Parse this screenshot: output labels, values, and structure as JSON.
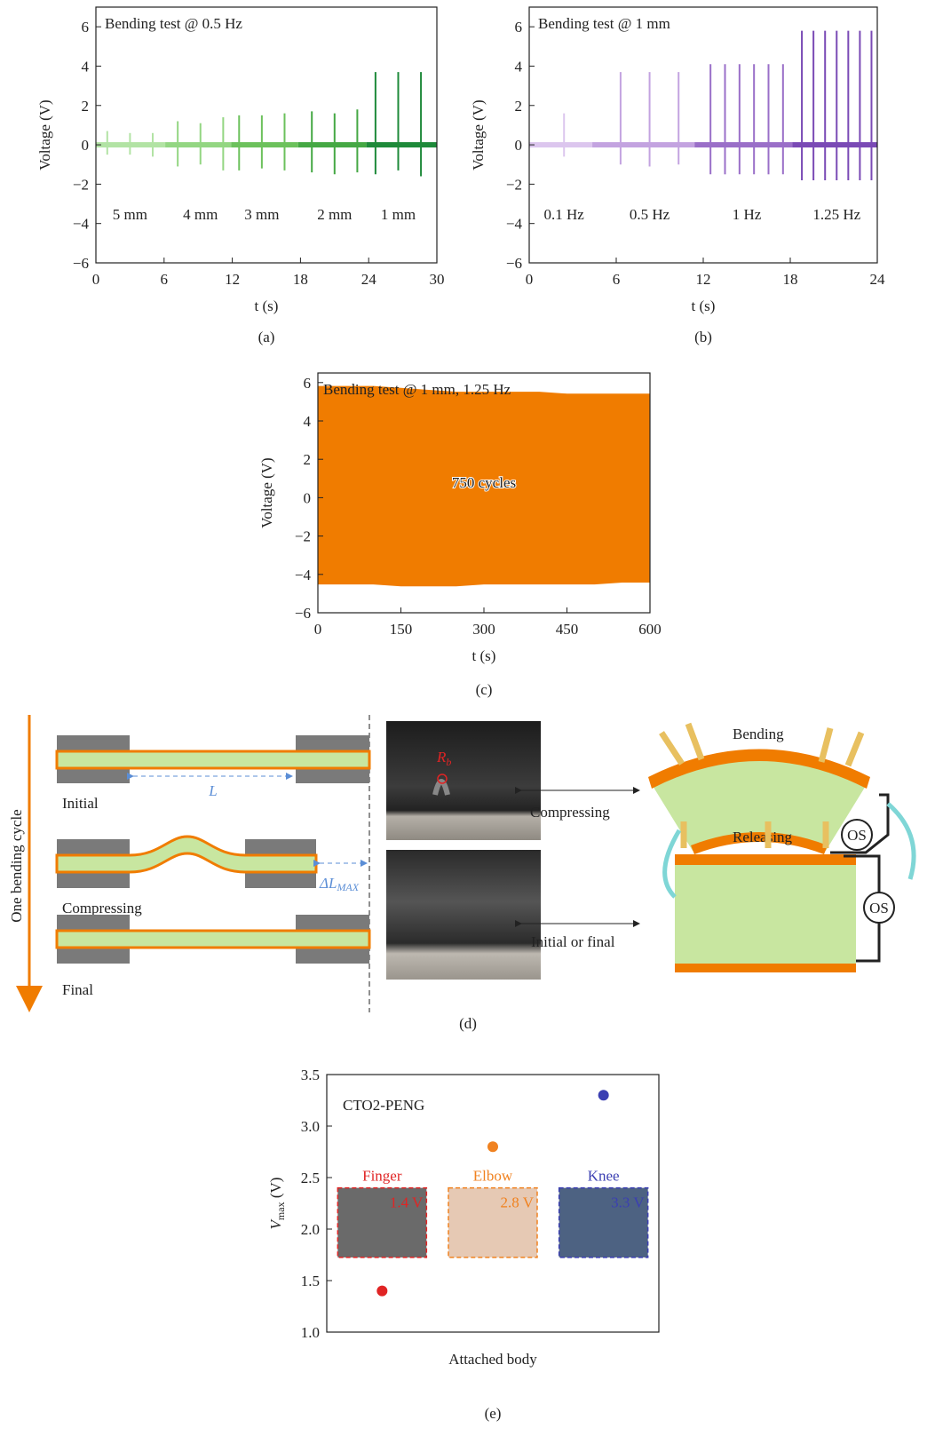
{
  "chart_data": [
    {
      "type": "spike",
      "title": "Bending test @ 0.5 Hz",
      "xlabel": "t (s)",
      "ylabel": "Voltage (V)",
      "caption": "(a)",
      "xlim": [
        0,
        30
      ],
      "xticks": [
        0,
        6,
        12,
        18,
        24,
        30
      ],
      "ylim": [
        -6,
        7
      ],
      "yticks": [
        {
          "value": -6,
          "label": "−6"
        },
        {
          "value": -4,
          "label": "−4"
        },
        {
          "value": -2,
          "label": "−2"
        },
        0,
        2,
        4,
        6
      ],
      "series": [
        {
          "name": "5 mm",
          "color": "#b2e3a4",
          "x": [
            1.0,
            3.0,
            5.0
          ],
          "values": [
            0.7,
            0.6,
            0.6
          ],
          "min_values": [
            -0.5,
            -0.5,
            -0.6
          ]
        },
        {
          "name": "4 mm",
          "color": "#93d682",
          "x": [
            7.2,
            9.2,
            11.2
          ],
          "values": [
            1.2,
            1.1,
            1.4
          ],
          "min_values": [
            -1.1,
            -1.0,
            -1.3
          ]
        },
        {
          "name": "3 mm",
          "color": "#6cc15c",
          "x": [
            12.6,
            14.6,
            16.6
          ],
          "values": [
            1.5,
            1.5,
            1.6
          ],
          "min_values": [
            -1.3,
            -1.2,
            -1.3
          ]
        },
        {
          "name": "2 mm",
          "color": "#45a844",
          "x": [
            19.0,
            21.0,
            23.0
          ],
          "values": [
            1.7,
            1.6,
            1.8
          ],
          "min_values": [
            -1.4,
            -1.5,
            -1.4
          ]
        },
        {
          "name": "1 mm",
          "color": "#1e8a3a",
          "x": [
            24.6,
            26.6,
            28.6
          ],
          "values": [
            3.7,
            3.7,
            3.7
          ],
          "min_values": [
            -1.5,
            -1.3,
            -1.6
          ]
        }
      ]
    },
    {
      "type": "spike",
      "title": "Bending test @ 1 mm",
      "xlabel": "t (s)",
      "ylabel": "Voltage (V)",
      "caption": "(b)",
      "xlim": [
        0,
        24
      ],
      "xticks": [
        0,
        6,
        12,
        18,
        24
      ],
      "ylim": [
        -6,
        7
      ],
      "yticks": [
        {
          "value": -6,
          "label": "−6"
        },
        {
          "value": -4,
          "label": "−4"
        },
        {
          "value": -2,
          "label": "−2"
        },
        0,
        2,
        4,
        6
      ],
      "series": [
        {
          "name": "0.1 Hz",
          "color": "#dcc6ee",
          "x": [
            2.4
          ],
          "values": [
            1.6
          ],
          "min_values": [
            -0.6
          ]
        },
        {
          "name": "0.5 Hz",
          "color": "#c3a3e0",
          "x": [
            6.3,
            8.3,
            10.3
          ],
          "values": [
            3.7,
            3.7,
            3.7
          ],
          "min_values": [
            -1.0,
            -1.1,
            -1.0
          ]
        },
        {
          "name": "1 Hz",
          "color": "#9a6fc8",
          "x": [
            12.5,
            13.5,
            14.5,
            15.5,
            16.5,
            17.5
          ],
          "values": [
            4.1,
            4.1,
            4.1,
            4.1,
            4.1,
            4.1
          ],
          "min_values": [
            -1.5,
            -1.5,
            -1.5,
            -1.5,
            -1.5,
            -1.5
          ]
        },
        {
          "name": "1.25 Hz",
          "color": "#7a4ab5",
          "x": [
            18.8,
            19.6,
            20.4,
            21.2,
            22.0,
            22.8,
            23.6
          ],
          "values": [
            5.8,
            5.8,
            5.8,
            5.8,
            5.8,
            5.8,
            5.8
          ],
          "min_values": [
            -1.8,
            -1.8,
            -1.8,
            -1.8,
            -1.8,
            -1.8,
            -1.8
          ]
        }
      ]
    },
    {
      "type": "area",
      "title": "Bending test @ 1 mm, 1.25 Hz",
      "annotation": "750 cycles",
      "xlabel": "t (s)",
      "ylabel": "Voltage (V)",
      "caption": "(c)",
      "color": "#f07c00",
      "xlim": [
        0,
        600
      ],
      "xticks": [
        0,
        150,
        300,
        450,
        600
      ],
      "ylim": [
        -6,
        6.5
      ],
      "yticks": [
        {
          "value": -6,
          "label": "−6"
        },
        {
          "value": -4,
          "label": "−4"
        },
        {
          "value": -2,
          "label": "−2"
        },
        0,
        2,
        4,
        6
      ],
      "x": [
        0,
        50,
        100,
        150,
        200,
        250,
        300,
        350,
        400,
        450,
        500,
        550,
        600
      ],
      "values": [
        5.8,
        5.8,
        5.8,
        5.7,
        5.6,
        5.5,
        5.5,
        5.5,
        5.5,
        5.4,
        5.4,
        5.4,
        5.4
      ],
      "min_values": [
        -4.5,
        -4.5,
        -4.5,
        -4.6,
        -4.6,
        -4.6,
        -4.5,
        -4.5,
        -4.5,
        -4.5,
        -4.5,
        -4.4,
        -4.4
      ]
    },
    {
      "type": "scatter",
      "title": "CTO2-PENG",
      "xlabel": "Attached body",
      "ylabel": "V",
      "ylabel_sub": "max",
      "ylabel_unit": " (V)",
      "caption": "(e)",
      "categories": [
        "Finger",
        "Elbow",
        "Knee"
      ],
      "values": [
        1.4,
        2.8,
        3.3
      ],
      "value_labels": [
        "1.4 V",
        "2.8 V",
        "3.3 V"
      ],
      "colors": [
        "#e02424",
        "#f08220",
        "#3b3fb2"
      ],
      "ylim": [
        1.0,
        3.5
      ],
      "yticks": [
        {
          "value": 1,
          "label": "1.0"
        },
        {
          "value": 1.5,
          "label": "1.5"
        },
        {
          "value": 2,
          "label": "2.0"
        },
        {
          "value": 2.5,
          "label": "2.5"
        },
        {
          "value": 3,
          "label": "3.0"
        },
        {
          "value": 3.5,
          "label": "3.5"
        }
      ]
    }
  ],
  "diagram": {
    "cycle_label": "One bending cycle",
    "states": [
      "Initial",
      "Compressing",
      "Final"
    ],
    "length": "L",
    "delta": "ΔL",
    "delta_sub": "MAX",
    "radius": "R",
    "radius_sub": "b",
    "arrows": [
      "Compressing",
      "Initial or final"
    ],
    "bending": "Bending",
    "releasing": "Releasing",
    "source": "OS",
    "caption": "(d)"
  }
}
